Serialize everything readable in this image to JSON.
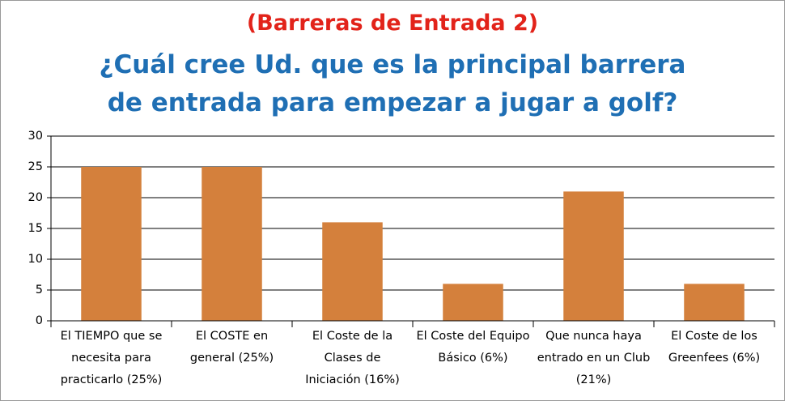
{
  "chart_data": {
    "type": "bar",
    "title": "(Barreras de Entrada 2)",
    "subtitle": "¿Cuál cree Ud. que es la principal barrera de entrada para empezar a jugar a golf?",
    "categories": [
      "El TIEMPO que se necesita para practicarlo (25%)",
      "El COSTE en general (25%)",
      "El Coste de la Clases de Iniciación (16%)",
      "El Coste del Equipo Básico (6%)",
      "Que nunca haya entrado en un Club (21%)",
      "El Coste de los Greenfees (6%)"
    ],
    "values": [
      25,
      25,
      16,
      6,
      21,
      6
    ],
    "color": "#d4803c",
    "ylim": [
      0,
      30
    ],
    "yticks": [
      0,
      5,
      10,
      15,
      20,
      25,
      30
    ],
    "grid": true
  }
}
